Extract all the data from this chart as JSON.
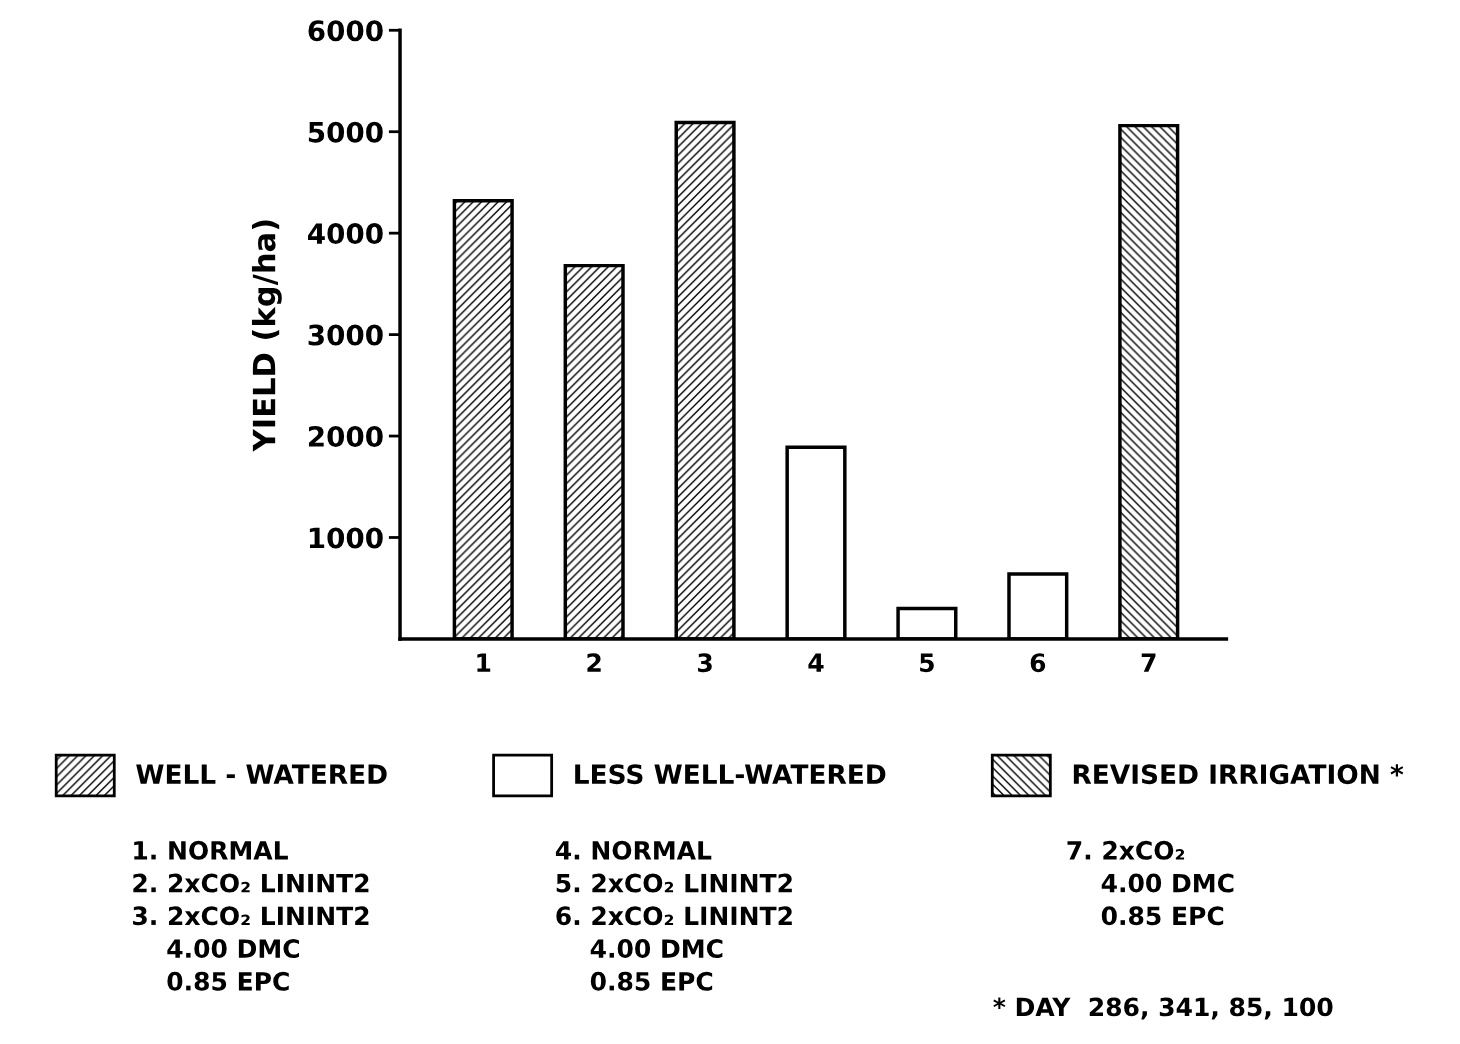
{
  "chart_data": {
    "type": "bar",
    "ylabel": "YIELD (kg/ha)",
    "categories": [
      "1",
      "2",
      "3",
      "4",
      "5",
      "6",
      "7"
    ],
    "series": [
      {
        "name": "WELL - WATERED",
        "color": "#000000",
        "values": [
          4320,
          3680,
          5090,
          null,
          null,
          null,
          null
        ]
      },
      {
        "name": "LESS WELL-WATERED",
        "color": "#ffffff",
        "values": [
          null,
          null,
          null,
          1890,
          300,
          640,
          null
        ]
      },
      {
        "name": "REVISED IRRIGATION *",
        "color": "#000000",
        "values": [
          null,
          null,
          null,
          null,
          null,
          null,
          5060
        ]
      }
    ],
    "ylim": [
      0,
      6000
    ],
    "yticks": [
      1000,
      2000,
      3000,
      4000,
      5000,
      6000
    ],
    "grid": false,
    "legend": "bottom",
    "annotations": [
      "1. NORMAL\n2. 2xCO₂ LININT2\n3. 2xCO₂ LININT2\n    4.00 DMC\n    0.85 EPC",
      "4. NORMAL\n5. 2xCO₂ LININT2\n6. 2xCO₂ LININT2\n    4.00 DMC\n    0.85 EPC",
      "7. 2xCO₂\n    4.00 DMC\n    0.85 EPC",
      "* DAY  286, 341, 85, 100"
    ]
  }
}
